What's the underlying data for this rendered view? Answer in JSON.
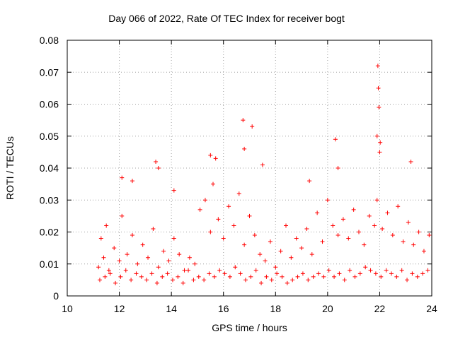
{
  "chart_data": {
    "type": "scatter",
    "title": "Day 066 of 2022, Rate Of TEC Index for receiver bogt",
    "xlabel": "GPS time / hours",
    "ylabel": "ROTI / TECUs",
    "xlim": [
      10,
      24
    ],
    "ylim": [
      0,
      0.08
    ],
    "xticks": [
      "10",
      "12",
      "14",
      "16",
      "18",
      "20",
      "22",
      "24"
    ],
    "yticks": [
      "0",
      "0.01",
      "0.02",
      "0.03",
      "0.04",
      "0.05",
      "0.06",
      "0.07",
      "0.08"
    ],
    "grid": true,
    "marker": "+",
    "color": "#ff0000",
    "series": [
      {
        "name": "ROTI",
        "x": [
          11.2,
          11.3,
          11.4,
          11.5,
          11.6,
          11.8,
          12.0,
          12.1,
          12.3,
          12.5,
          12.7,
          12.9,
          13.1,
          13.3,
          13.5,
          13.7,
          13.9,
          14.1,
          14.3,
          14.5,
          14.7,
          14.9,
          15.1,
          15.3,
          15.5,
          15.6,
          15.8,
          16.0,
          16.2,
          16.4,
          16.6,
          16.8,
          17.0,
          17.2,
          17.4,
          17.6,
          17.8,
          18.0,
          18.2,
          18.4,
          18.6,
          18.8,
          19.0,
          19.2,
          19.4,
          19.6,
          19.8,
          20.0,
          20.2,
          20.4,
          20.6,
          20.8,
          21.0,
          21.2,
          21.4,
          21.6,
          21.8,
          21.9,
          22.0,
          22.1,
          22.3,
          22.5,
          22.7,
          22.9,
          23.1,
          23.3,
          23.5,
          23.7,
          23.9,
          11.25,
          11.45,
          11.65,
          11.85,
          12.05,
          12.25,
          12.45,
          12.65,
          12.85,
          13.05,
          13.25,
          13.45,
          13.65,
          13.85,
          14.05,
          14.25,
          14.45,
          14.65,
          14.85,
          15.05,
          15.25,
          15.45,
          15.65,
          15.85,
          16.05,
          16.25,
          16.45,
          16.65,
          16.85,
          17.05,
          17.25,
          17.45,
          17.65,
          17.85,
          18.05,
          18.25,
          18.45,
          18.65,
          18.85,
          19.05,
          19.25,
          19.45,
          19.65,
          19.85,
          20.05,
          20.25,
          20.45,
          20.65,
          20.85,
          21.05,
          21.25,
          21.45,
          21.65,
          21.85,
          22.05,
          22.25,
          22.45,
          22.65,
          22.85,
          23.05,
          23.25,
          23.45,
          23.65,
          23.85,
          21.93,
          21.95,
          21.97,
          16.75,
          17.1,
          15.5,
          20.3,
          23.2,
          12.1,
          13.4,
          21.9,
          22.02,
          16.8,
          20.4,
          19.3,
          15.7,
          13.5,
          12.5,
          14.1,
          17.5
        ],
        "y": [
          0.009,
          0.018,
          0.012,
          0.022,
          0.008,
          0.015,
          0.011,
          0.025,
          0.013,
          0.019,
          0.01,
          0.016,
          0.012,
          0.021,
          0.009,
          0.014,
          0.011,
          0.018,
          0.013,
          0.008,
          0.012,
          0.01,
          0.027,
          0.03,
          0.02,
          0.035,
          0.024,
          0.018,
          0.028,
          0.022,
          0.032,
          0.016,
          0.025,
          0.019,
          0.013,
          0.011,
          0.017,
          0.009,
          0.014,
          0.022,
          0.012,
          0.018,
          0.015,
          0.021,
          0.013,
          0.026,
          0.017,
          0.03,
          0.022,
          0.019,
          0.024,
          0.018,
          0.027,
          0.02,
          0.016,
          0.025,
          0.022,
          0.03,
          0.045,
          0.021,
          0.026,
          0.019,
          0.028,
          0.017,
          0.023,
          0.016,
          0.02,
          0.014,
          0.019,
          0.005,
          0.006,
          0.007,
          0.004,
          0.006,
          0.008,
          0.005,
          0.007,
          0.006,
          0.005,
          0.007,
          0.004,
          0.006,
          0.007,
          0.005,
          0.006,
          0.004,
          0.008,
          0.005,
          0.006,
          0.005,
          0.007,
          0.006,
          0.008,
          0.007,
          0.006,
          0.009,
          0.007,
          0.005,
          0.006,
          0.008,
          0.004,
          0.006,
          0.005,
          0.007,
          0.006,
          0.004,
          0.005,
          0.006,
          0.007,
          0.005,
          0.006,
          0.007,
          0.006,
          0.008,
          0.006,
          0.007,
          0.005,
          0.008,
          0.006,
          0.007,
          0.009,
          0.008,
          0.007,
          0.006,
          0.008,
          0.007,
          0.006,
          0.008,
          0.005,
          0.007,
          0.006,
          0.007,
          0.008,
          0.072,
          0.065,
          0.059,
          0.055,
          0.053,
          0.044,
          0.049,
          0.042,
          0.037,
          0.042,
          0.05,
          0.048,
          0.046,
          0.04,
          0.036,
          0.043,
          0.04,
          0.036,
          0.033,
          0.041
        ]
      }
    ]
  }
}
